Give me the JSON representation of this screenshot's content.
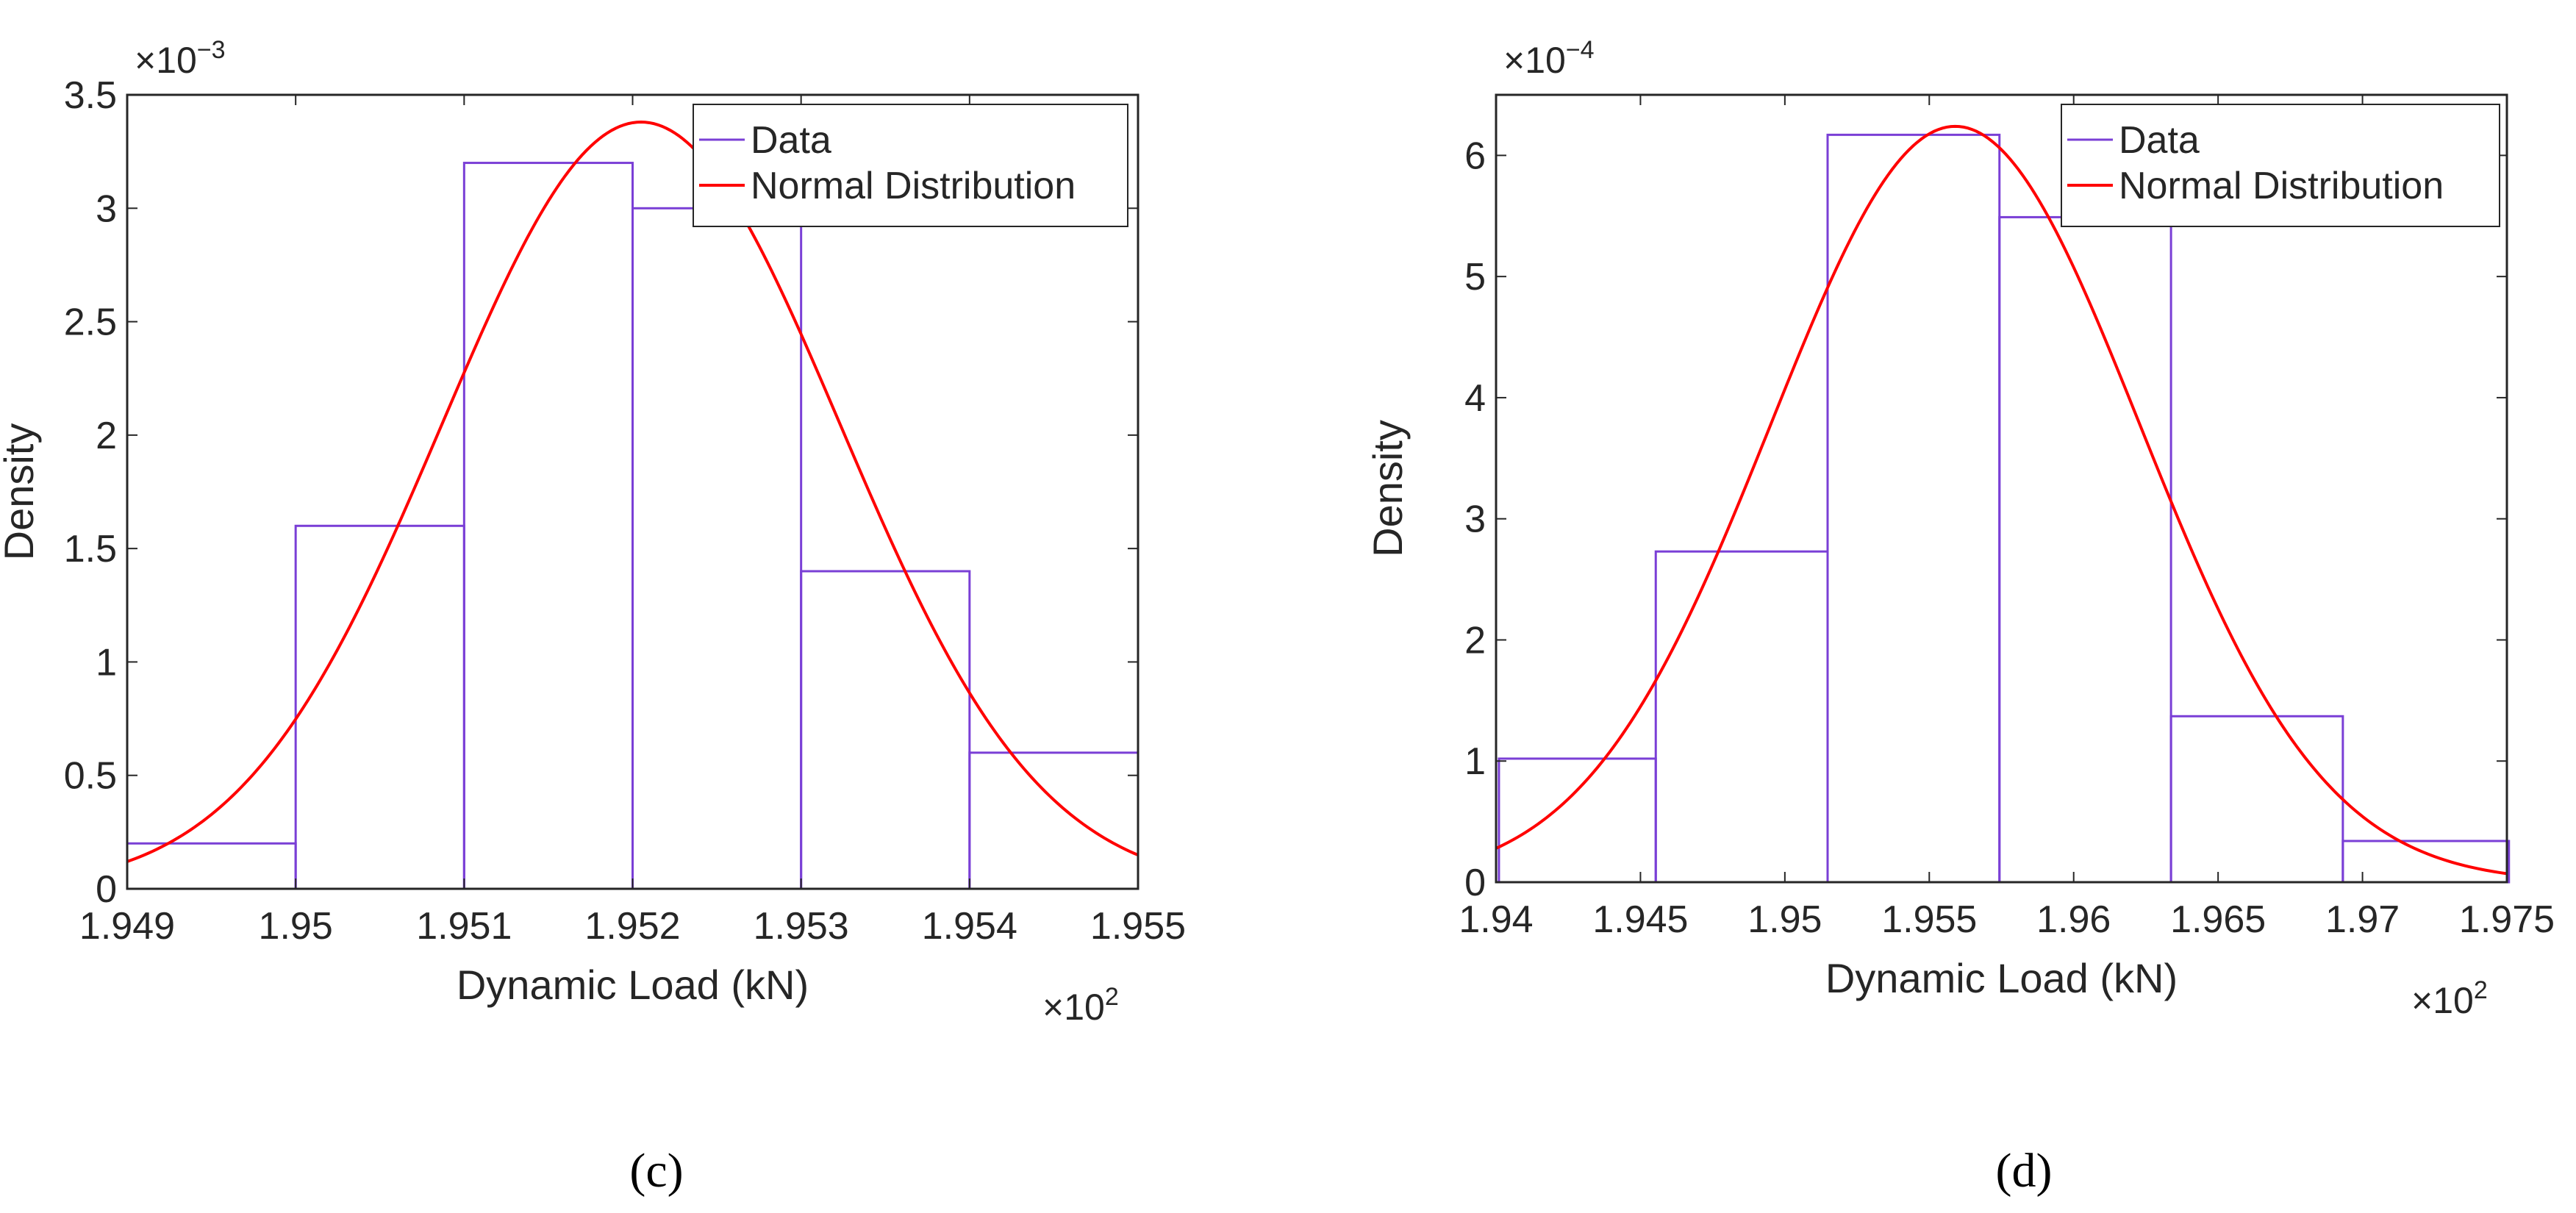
{
  "chart_data": [
    {
      "type": "histogram",
      "panel_label": "c",
      "xlabel": "Dynamic Load (kN)",
      "ylabel": "Density",
      "x_multiplier": "×10",
      "x_multiplier_exp": "2",
      "y_multiplier": "×10",
      "y_multiplier_exp": "−3",
      "xlim": [
        1.949,
        1.955
      ],
      "ylim": [
        0,
        3.5
      ],
      "x_ticks": [
        "1.949",
        "1.95",
        "1.951",
        "1.952",
        "1.953",
        "1.954",
        "1.955"
      ],
      "x_tick_values": [
        1.949,
        1.95,
        1.951,
        1.952,
        1.953,
        1.954,
        1.955
      ],
      "y_ticks": [
        "0",
        "0.5",
        "1",
        "1.5",
        "2",
        "2.5",
        "3",
        "3.5"
      ],
      "y_tick_values": [
        0,
        0.5,
        1,
        1.5,
        2,
        2.5,
        3,
        3.5
      ],
      "bin_edges": [
        1.949,
        1.95,
        1.951,
        1.952,
        1.953,
        1.954,
        1.955
      ],
      "values": [
        0.2,
        1.6,
        3.2,
        3.0,
        1.4,
        0.6
      ],
      "normal_fit": {
        "mean": 1.95205,
        "peak": 3.38
      },
      "legend": {
        "data_label": "Data",
        "fit_label": "Normal Distribution",
        "position": "top-right"
      },
      "colors": {
        "data": "#7a3fd6",
        "fit": "#ff0000"
      }
    },
    {
      "type": "histogram",
      "panel_label": "d",
      "xlabel": "Dynamic Load (kN)",
      "ylabel": "Density",
      "x_multiplier": "×10",
      "x_multiplier_exp": "2",
      "y_multiplier": "×10",
      "y_multiplier_exp": "−4",
      "xlim": [
        1.94,
        1.975
      ],
      "ylim": [
        0,
        6.5
      ],
      "x_ticks": [
        "1.94",
        "1.945",
        "1.95",
        "1.955",
        "1.96",
        "1.965",
        "1.97",
        "1.975"
      ],
      "x_tick_values": [
        1.94,
        1.945,
        1.95,
        1.955,
        1.96,
        1.965,
        1.97,
        1.975
      ],
      "y_ticks": [
        "0",
        "1",
        "2",
        "3",
        "4",
        "5",
        "6"
      ],
      "y_tick_values": [
        0,
        1,
        2,
        3,
        4,
        5,
        6
      ],
      "bin_edges": [
        1.9401,
        1.94553,
        1.95148,
        1.95743,
        1.96337,
        1.96932,
        1.97507
      ],
      "values": [
        1.02,
        2.73,
        6.17,
        5.49,
        1.37,
        0.34
      ],
      "normal_fit": {
        "mean": 1.9559,
        "peak": 6.24
      },
      "legend": {
        "data_label": "Data",
        "fit_label": "Normal Distribution",
        "position": "top-right"
      },
      "colors": {
        "data": "#7a3fd6",
        "fit": "#ff0000"
      }
    }
  ],
  "captions": {
    "c": "(c)",
    "d": "(d)"
  }
}
